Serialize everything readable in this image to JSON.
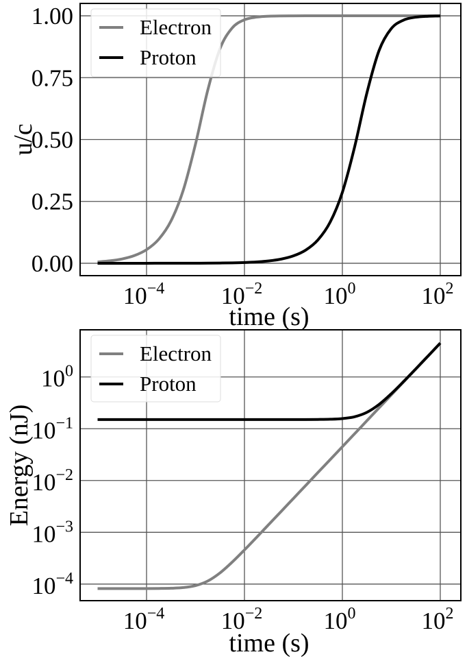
{
  "chart_data": [
    {
      "type": "line",
      "xscale": "log",
      "yscale": "linear",
      "xlabel": "time (s)",
      "ylabel": "u/c",
      "xlim_log10": [
        -5.357,
        2.42
      ],
      "ylim": [
        -0.05,
        1.05
      ],
      "grid": true,
      "legend": "top-left",
      "xticks": [
        {
          "base": "10",
          "exp": "−4",
          "value": -4
        },
        {
          "base": "10",
          "exp": "−2",
          "value": -2
        },
        {
          "base": "10",
          "exp": "0",
          "value": 0
        },
        {
          "base": "10",
          "exp": "2",
          "value": 2
        }
      ],
      "yticks": [
        {
          "label": "0.00",
          "value": 0
        },
        {
          "label": "0.25",
          "value": 0.25
        },
        {
          "label": "0.50",
          "value": 0.5
        },
        {
          "label": "0.75",
          "value": 0.75
        },
        {
          "label": "1.00",
          "value": 1
        }
      ],
      "log10_t": [
        -5,
        -4.75,
        -4.5,
        -4.25,
        -4,
        -3.75,
        -3.5,
        -3.25,
        -3,
        -2.75,
        -2.5,
        -2.25,
        -2,
        -1.75,
        -1.5,
        -1.25,
        -1,
        -0.75,
        -0.5,
        -0.25,
        0,
        0.25,
        0.5,
        0.75,
        1,
        1.25,
        1.5,
        1.75,
        2
      ],
      "series": [
        {
          "name": "Electron",
          "color": "#808080",
          "values": [
            0.0055,
            0.0098,
            0.0174,
            0.0309,
            0.0549,
            0.0972,
            0.1712,
            0.2952,
            0.4816,
            0.699,
            0.867,
            0.951,
            0.984,
            0.9948,
            0.9983,
            0.9995,
            0.9998,
            1,
            1,
            1,
            1,
            1,
            1,
            1,
            1,
            1,
            1,
            1,
            1
          ]
        },
        {
          "name": "Proton",
          "color": "#000000",
          "values": [
            0,
            0,
            0,
            0,
            0,
            0.0001,
            0.0001,
            0.0002,
            0.0003,
            0.0005,
            0.001,
            0.0017,
            0.003,
            0.0053,
            0.0095,
            0.0168,
            0.0299,
            0.0531,
            0.0943,
            0.1661,
            0.2868,
            0.4699,
            0.6875,
            0.8598,
            0.9484,
            0.9828,
            0.9945,
            0.9982,
            0.9994
          ]
        }
      ]
    },
    {
      "type": "line",
      "xscale": "log",
      "yscale": "log",
      "xlabel": "time (s)",
      "ylabel": "Energy (nJ)",
      "xlim_log10": [
        -5.357,
        2.42
      ],
      "ylim_log10": [
        -4.32,
        0.91
      ],
      "grid": true,
      "legend": "top-left",
      "xticks": [
        {
          "base": "10",
          "exp": "−4",
          "value": -4
        },
        {
          "base": "10",
          "exp": "−2",
          "value": -2
        },
        {
          "base": "10",
          "exp": "0",
          "value": 0
        },
        {
          "base": "10",
          "exp": "2",
          "value": 2
        }
      ],
      "yticks": [
        {
          "base": "10",
          "exp": "−4",
          "value": -4
        },
        {
          "base": "10",
          "exp": "−3",
          "value": -3
        },
        {
          "base": "10",
          "exp": "−2",
          "value": -2
        },
        {
          "base": "10",
          "exp": "−1",
          "value": -1
        },
        {
          "base": "10",
          "exp": "0",
          "value": 0
        }
      ],
      "log10_t": [
        -5,
        -4.75,
        -4.5,
        -4.25,
        -4,
        -3.75,
        -3.5,
        -3.25,
        -3,
        -2.75,
        -2.5,
        -2.25,
        -2,
        -1.75,
        -1.5,
        -1.25,
        -1,
        -0.75,
        -0.5,
        -0.25,
        0,
        0.25,
        0.5,
        0.75,
        1,
        1.25,
        1.5,
        1.75,
        2
      ],
      "series": [
        {
          "name": "Electron",
          "color": "#808080",
          "values": [
            8.19e-05,
            8.19e-05,
            8.2e-05,
            8.2e-05,
            8.2e-05,
            8.23e-05,
            8.31e-05,
            8.57e-05,
            9.35e-05,
            0.0001145,
            0.0001642,
            0.000266,
            0.000457,
            0.000804,
            0.001426,
            0.00253,
            0.0045,
            0.008,
            0.01424,
            0.0253,
            0.045,
            0.08,
            0.1423,
            0.2531,
            0.45,
            0.8,
            1.423,
            2.531,
            4.5
          ]
        },
        {
          "name": "Proton",
          "color": "#000000",
          "values": [
            0.1504,
            0.1504,
            0.1504,
            0.1504,
            0.1504,
            0.1504,
            0.1504,
            0.1504,
            0.1504,
            0.1504,
            0.1504,
            0.1504,
            0.1504,
            0.1504,
            0.1504,
            0.1504,
            0.1505,
            0.1506,
            0.1511,
            0.1525,
            0.157,
            0.1704,
            0.2071,
            0.2945,
            0.4748,
            0.8146,
            1.432,
            2.537,
            4.506
          ]
        }
      ]
    }
  ]
}
